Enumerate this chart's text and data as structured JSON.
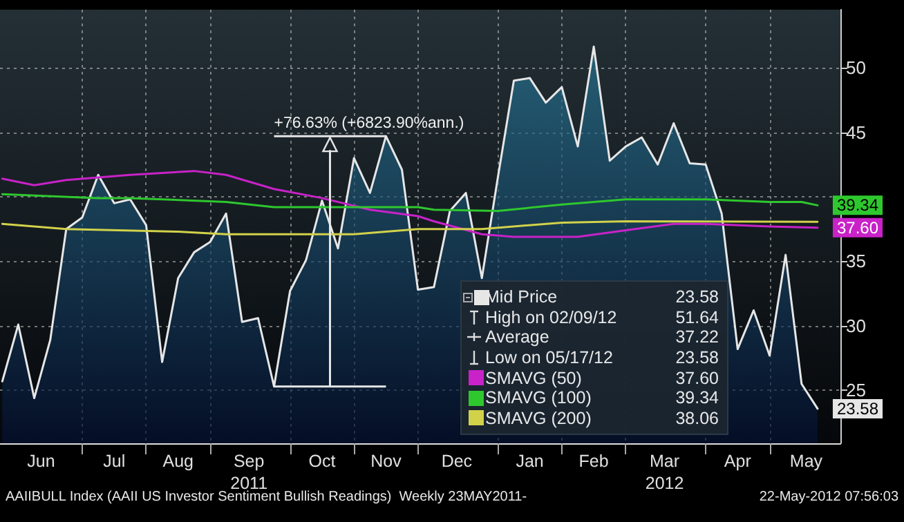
{
  "chart_data": {
    "type": "area",
    "x": [
      "2011-05-26",
      "2011-06-02",
      "2011-06-09",
      "2011-06-16",
      "2011-06-23",
      "2011-06-30",
      "2011-07-07",
      "2011-07-14",
      "2011-07-21",
      "2011-07-28",
      "2011-08-04",
      "2011-08-11",
      "2011-08-18",
      "2011-08-25",
      "2011-09-01",
      "2011-09-08",
      "2011-09-15",
      "2011-09-22",
      "2011-09-29",
      "2011-10-06",
      "2011-10-13",
      "2011-10-20",
      "2011-10-27",
      "2011-11-03",
      "2011-11-10",
      "2011-11-17",
      "2011-11-24",
      "2011-12-01",
      "2011-12-08",
      "2011-12-15",
      "2011-12-22",
      "2011-12-29",
      "2012-01-05",
      "2012-01-12",
      "2012-01-19",
      "2012-01-26",
      "2012-02-02",
      "2012-02-09",
      "2012-02-16",
      "2012-02-23",
      "2012-03-01",
      "2012-03-08",
      "2012-03-15",
      "2012-03-22",
      "2012-03-29",
      "2012-04-05",
      "2012-04-12",
      "2012-04-19",
      "2012-04-26",
      "2012-05-03",
      "2012-05-10",
      "2012-05-17"
    ],
    "series": [
      {
        "name": "Mid Price",
        "color": "#e6e6e6",
        "values": [
          25.7,
          30.1,
          24.4,
          28.9,
          37.5,
          38.4,
          41.7,
          39.5,
          39.8,
          37.8,
          27.2,
          33.7,
          35.7,
          36.5,
          38.7,
          30.3,
          30.6,
          25.3,
          32.7,
          35.1,
          39.7,
          36.0,
          43.0,
          40.3,
          44.7,
          42.1,
          32.8,
          33.0,
          38.9,
          40.3,
          33.7,
          41.5,
          49.0,
          49.2,
          47.3,
          48.5,
          43.9,
          51.64,
          42.8,
          43.9,
          44.6,
          42.5,
          45.7,
          42.6,
          42.5,
          38.7,
          28.2,
          31.2,
          27.7,
          35.5,
          25.5,
          23.58
        ],
        "value_labels": [
          null,
          null,
          null,
          null,
          null,
          null,
          null,
          null,
          null,
          null,
          null,
          null,
          null,
          null,
          null,
          null,
          null,
          null,
          null,
          null,
          null,
          null,
          null,
          null,
          null,
          null,
          null,
          null,
          null,
          null,
          null,
          null,
          null,
          null,
          null,
          null,
          null,
          null,
          null,
          null,
          null,
          null,
          null,
          null,
          null,
          null,
          null,
          null,
          null,
          null,
          null,
          "23.58"
        ]
      },
      {
        "name": "SMAVG (50)",
        "type": "line",
        "color": "#c822c8",
        "x": [
          "2011-05-26",
          "2011-06-09",
          "2011-06-23",
          "2011-07-21",
          "2011-08-18",
          "2011-09-01",
          "2011-09-22",
          "2011-10-13",
          "2011-11-03",
          "2011-11-24",
          "2011-12-01",
          "2011-12-22",
          "2012-01-05",
          "2012-02-02",
          "2012-02-23",
          "2012-03-15",
          "2012-03-29",
          "2012-04-26",
          "2012-05-17"
        ],
        "values": [
          41.4,
          40.9,
          41.3,
          41.7,
          42.0,
          41.7,
          40.6,
          39.9,
          39.0,
          38.5,
          38.1,
          37.1,
          36.9,
          36.9,
          37.4,
          37.9,
          37.9,
          37.7,
          37.6
        ],
        "value_labels": [
          null,
          null,
          null,
          null,
          null,
          null,
          null,
          null,
          null,
          null,
          null,
          null,
          null,
          null,
          null,
          null,
          null,
          null,
          "37.60"
        ]
      },
      {
        "name": "SMAVG (100)",
        "type": "line",
        "color": "#2ec82e",
        "x": [
          "2011-05-26",
          "2011-07-07",
          "2011-07-21",
          "2011-09-01",
          "2011-09-22",
          "2011-11-24",
          "2011-12-01",
          "2011-12-29",
          "2012-01-26",
          "2012-02-23",
          "2012-03-29",
          "2012-04-26",
          "2012-05-10",
          "2012-05-17"
        ],
        "values": [
          40.2,
          39.9,
          39.9,
          39.6,
          39.2,
          39.2,
          39.0,
          38.9,
          39.4,
          39.8,
          39.8,
          39.6,
          39.6,
          39.34
        ],
        "value_labels": [
          null,
          null,
          null,
          null,
          null,
          null,
          null,
          null,
          null,
          null,
          null,
          null,
          null,
          "39.34"
        ]
      },
      {
        "name": "SMAVG (200)",
        "type": "line",
        "color": "#d2d24a",
        "x": [
          "2011-05-26",
          "2011-06-23",
          "2011-08-11",
          "2011-09-01",
          "2011-10-27",
          "2011-11-24",
          "2011-12-22",
          "2012-01-26",
          "2012-02-23",
          "2012-05-17"
        ],
        "values": [
          37.9,
          37.5,
          37.3,
          37.1,
          37.1,
          37.5,
          37.5,
          38.0,
          38.1,
          38.06
        ]
      }
    ],
    "xlim": [
      "2011-05-25",
      "2012-05-27"
    ],
    "xticks": [
      {
        "value": "2011-06-12",
        "label": "Jun"
      },
      {
        "value": "2011-06-30",
        "label": null
      },
      {
        "value": "2011-07-14",
        "label": "Jul"
      },
      {
        "value": "2011-07-28",
        "label": null
      },
      {
        "value": "2011-08-11",
        "label": "Aug"
      },
      {
        "value": "2011-08-25",
        "label": null
      },
      {
        "value": "2011-09-11",
        "label": "Sep\n2011"
      },
      {
        "value": "2011-09-29",
        "label": null
      },
      {
        "value": "2011-10-13",
        "label": "Oct"
      },
      {
        "value": "2011-10-27",
        "label": null
      },
      {
        "value": "2011-11-10",
        "label": "Nov"
      },
      {
        "value": "2011-11-24",
        "label": null
      },
      {
        "value": "2011-12-11",
        "label": "Dec"
      },
      {
        "value": "2011-12-29",
        "label": null
      },
      {
        "value": "2012-01-12",
        "label": "Jan"
      },
      {
        "value": "2012-01-26",
        "label": null
      },
      {
        "value": "2012-02-09",
        "label": "Feb"
      },
      {
        "value": "2012-02-23",
        "label": null
      },
      {
        "value": "2012-03-11",
        "label": "Mar\n2012"
      },
      {
        "value": "2012-03-29",
        "label": null
      },
      {
        "value": "2012-04-12",
        "label": "Apr"
      },
      {
        "value": "2012-04-26",
        "label": null
      },
      {
        "value": "2012-05-12",
        "label": "May"
      }
    ],
    "ylim": [
      20.9,
      54.5
    ],
    "yticks": [
      25,
      30,
      35,
      {
        "value": 40,
        "label": null
      },
      45,
      50
    ],
    "grid": true,
    "legend": "bottom",
    "marker": "none",
    "line_style": "solid",
    "annotations": [
      {
        "text": "+76.63% (+6823.90%ann.)",
        "x": "2011-11-10",
        "y": 44.7
      },
      "High on 02/09/12 51.64",
      "Average 37.22",
      "Low on 05/17/12 23.58",
      "AAIIBULL Index (AAII US Investor Sentiment Bullish Readings)  Weekly 23MAY2011-",
      "22-May-2012 07:56:03",
      "23.58",
      "37.60",
      "39.34",
      "38.06"
    ]
  }
}
